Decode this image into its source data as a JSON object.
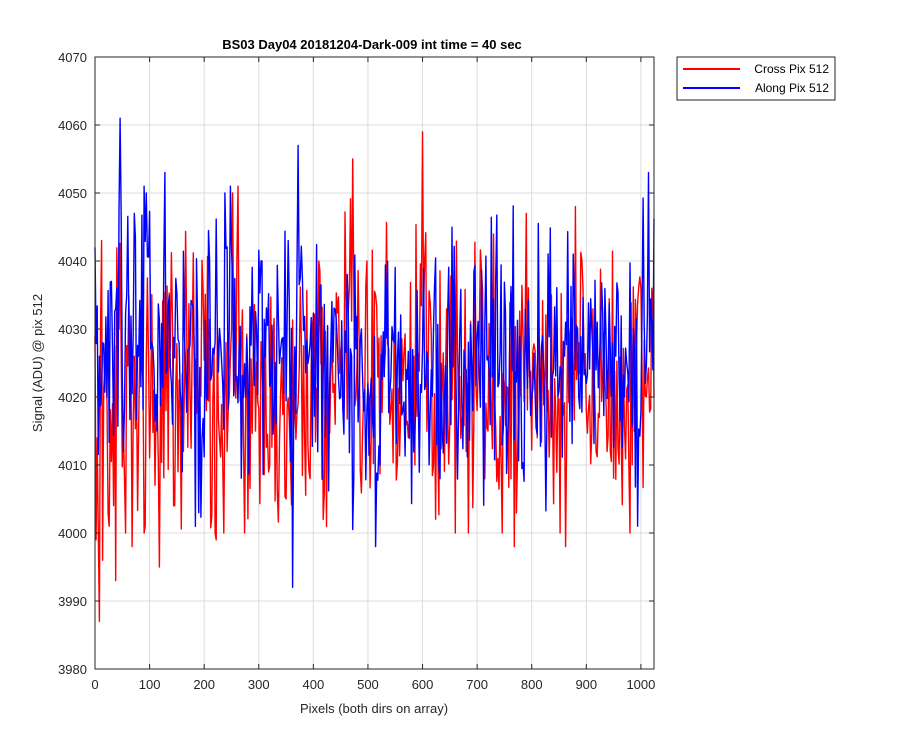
{
  "chart_data": {
    "type": "line",
    "title": "BS03 Day04 20181204-Dark-009 int time = 40 sec",
    "xlabel": "Pixels (both dirs on array)",
    "ylabel": "Signal (ADU) @ pix 512",
    "xlim": [
      0,
      1024
    ],
    "ylim": [
      3980,
      4070
    ],
    "xticks": [
      0,
      100,
      200,
      300,
      400,
      500,
      600,
      700,
      800,
      900,
      1000
    ],
    "yticks": [
      3980,
      3990,
      4000,
      4010,
      4020,
      4030,
      4040,
      4050,
      4060,
      4070
    ],
    "grid": true,
    "legend_position": "outside-top-right",
    "series": [
      {
        "name": "Cross Pix 512",
        "color": "#ff0000",
        "mean": 4025,
        "points": [
          [
            0,
            4029
          ],
          [
            2,
            3999
          ],
          [
            5,
            4014
          ],
          [
            9,
            3987
          ],
          [
            12,
            4043
          ],
          [
            15,
            3996
          ],
          [
            20,
            4026
          ],
          [
            26,
            4001
          ],
          [
            32,
            4019
          ],
          [
            38,
            3993
          ],
          [
            45,
            4030
          ],
          [
            55,
            4008
          ],
          [
            68,
            3998
          ],
          [
            80,
            4016
          ],
          [
            92,
            4001
          ],
          [
            108,
            4021
          ],
          [
            118,
            3995
          ],
          [
            130,
            4018
          ],
          [
            145,
            4004
          ],
          [
            162,
            4012
          ],
          [
            178,
            4028
          ],
          [
            190,
            4003
          ],
          [
            205,
            4018
          ],
          [
            222,
            3999
          ],
          [
            242,
            4012
          ],
          [
            262,
            4051
          ],
          [
            275,
            4000
          ],
          [
            295,
            4015
          ],
          [
            320,
            4010
          ],
          [
            333,
            4022
          ],
          [
            350,
            4005
          ],
          [
            372,
            4019
          ],
          [
            390,
            4013
          ],
          [
            410,
            4040
          ],
          [
            418,
            4002
          ],
          [
            440,
            4016
          ],
          [
            472,
            4055
          ],
          [
            490,
            4014
          ],
          [
            515,
            4035
          ],
          [
            540,
            4016
          ],
          [
            560,
            4018
          ],
          [
            585,
            4026
          ],
          [
            600,
            4059
          ],
          [
            620,
            4010
          ],
          [
            650,
            4016
          ],
          [
            680,
            4012
          ],
          [
            700,
            4018
          ],
          [
            720,
            4015
          ],
          [
            745,
            4011
          ],
          [
            768,
            3998
          ],
          [
            790,
            4047
          ],
          [
            810,
            4014
          ],
          [
            830,
            4021
          ],
          [
            845,
            4018
          ],
          [
            862,
            3998
          ],
          [
            880,
            4048
          ],
          [
            900,
            4018
          ],
          [
            925,
            4017
          ],
          [
            945,
            4012
          ],
          [
            965,
            4014
          ],
          [
            985,
            4010
          ],
          [
            1000,
            4036
          ],
          [
            1010,
            4020
          ],
          [
            1020,
            4036
          ]
        ]
      },
      {
        "name": "Along Pix 512",
        "color": "#0000ff",
        "mean": 4026,
        "points": [
          [
            0,
            4042
          ],
          [
            8,
            4026
          ],
          [
            15,
            4028
          ],
          [
            22,
            4020
          ],
          [
            30,
            4037
          ],
          [
            40,
            4036
          ],
          [
            47,
            4061
          ],
          [
            52,
            4012
          ],
          [
            62,
            4032
          ],
          [
            72,
            4047
          ],
          [
            80,
            4026
          ],
          [
            90,
            4051
          ],
          [
            105,
            4028
          ],
          [
            115,
            4015
          ],
          [
            128,
            4053
          ],
          [
            140,
            4022
          ],
          [
            155,
            4028
          ],
          [
            172,
            4027
          ],
          [
            190,
            4003
          ],
          [
            205,
            4020
          ],
          [
            220,
            4028
          ],
          [
            235,
            4022
          ],
          [
            248,
            4051
          ],
          [
            265,
            4027
          ],
          [
            280,
            4023
          ],
          [
            290,
            4028
          ],
          [
            305,
            4040
          ],
          [
            322,
            4022
          ],
          [
            340,
            4027
          ],
          [
            355,
            4043
          ],
          [
            362,
            3992
          ],
          [
            372,
            4057
          ],
          [
            392,
            4026
          ],
          [
            410,
            4029
          ],
          [
            430,
            4022
          ],
          [
            450,
            4020
          ],
          [
            470,
            4026
          ],
          [
            488,
            4030
          ],
          [
            500,
            4022
          ],
          [
            515,
            3998
          ],
          [
            530,
            4023
          ],
          [
            548,
            4028
          ],
          [
            565,
            4018
          ],
          [
            588,
            4020
          ],
          [
            600,
            4027
          ],
          [
            620,
            4030
          ],
          [
            640,
            4020
          ],
          [
            660,
            4028
          ],
          [
            680,
            4024
          ],
          [
            700,
            4029
          ],
          [
            720,
            4026
          ],
          [
            740,
            4022
          ],
          [
            760,
            4030
          ],
          [
            780,
            4024
          ],
          [
            800,
            4020
          ],
          [
            820,
            4029
          ],
          [
            840,
            4024
          ],
          [
            860,
            4026
          ],
          [
            880,
            4024
          ],
          [
            900,
            4022
          ],
          [
            920,
            4031
          ],
          [
            940,
            4024
          ],
          [
            955,
            4026
          ],
          [
            970,
            4020
          ],
          [
            982,
            4024
          ],
          [
            995,
            4001
          ],
          [
            1008,
            4022
          ],
          [
            1015,
            4053
          ],
          [
            1022,
            4024
          ]
        ]
      }
    ]
  }
}
